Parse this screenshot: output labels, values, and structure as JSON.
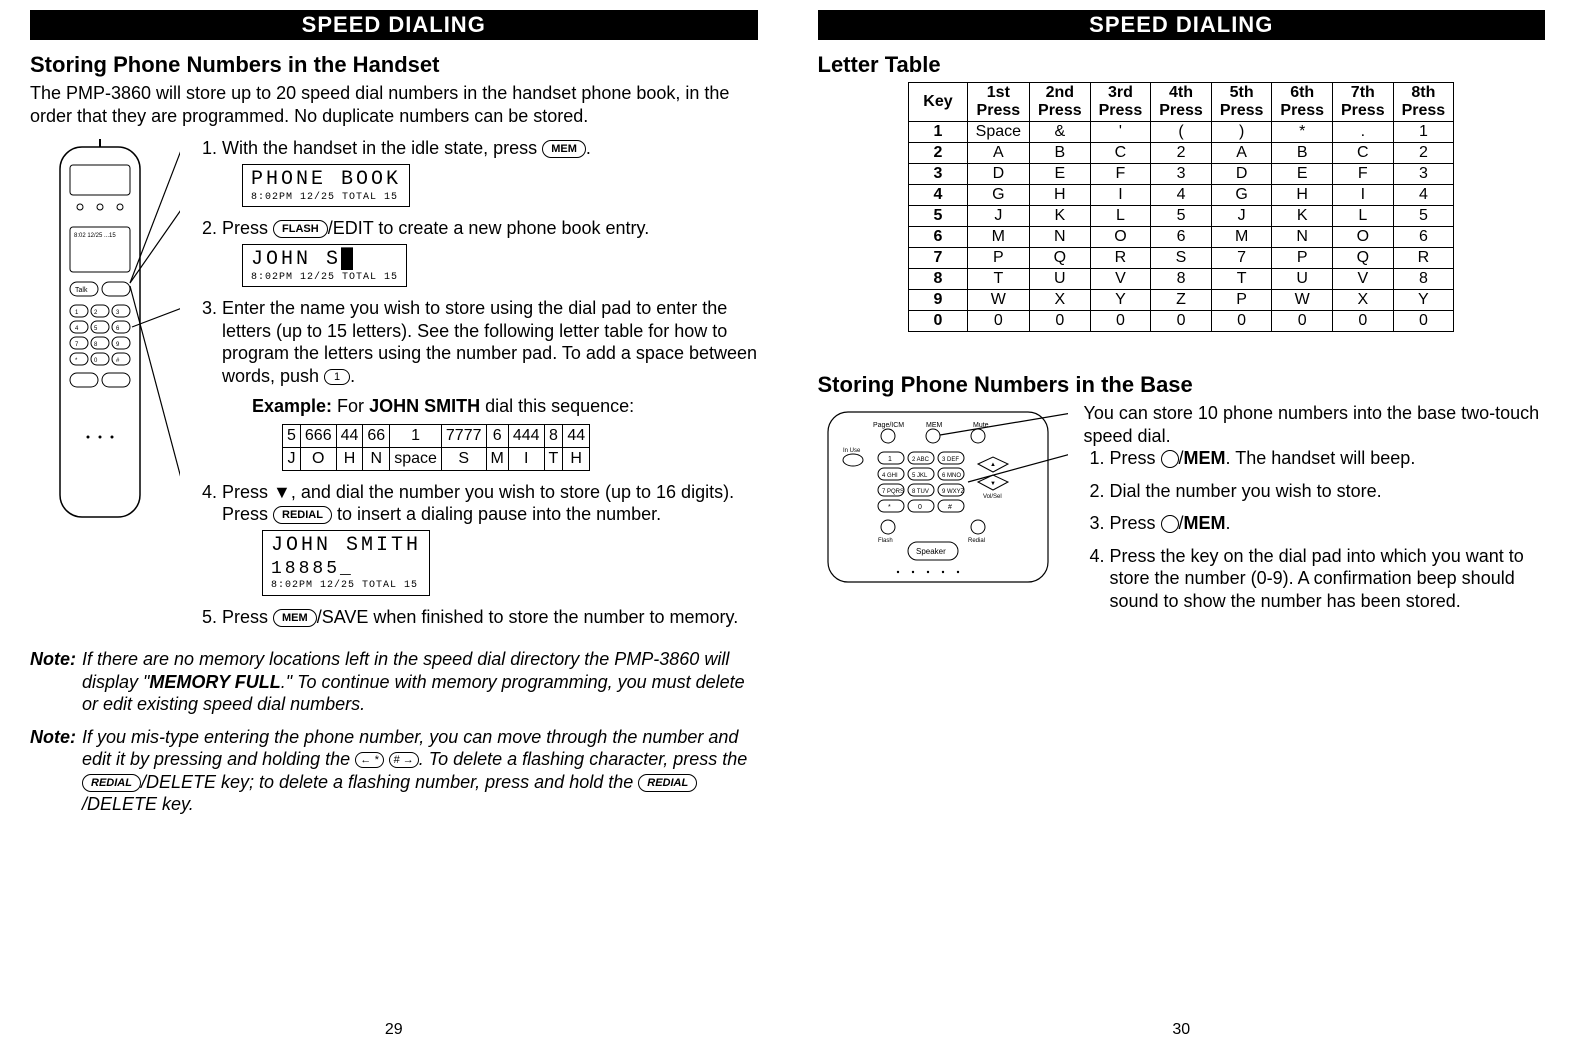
{
  "left": {
    "banner": "SPEED DIALING",
    "title": "Storing Phone Numbers in the Handset",
    "intro": "The PMP-3860 will store up to 20 speed dial numbers in the handset phone book, in the order that they are programmed.  No duplicate numbers can be stored.",
    "buttons": {
      "mem": "MEM",
      "flash": "FLASH",
      "redial": "REDIAL",
      "one": "1"
    },
    "steps": {
      "s1": "With the handset in the idle state, press ",
      "s1_end": ".",
      "lcd1_main": "PHONE BOOK",
      "lcd1_sub": "8:02PM 12/25     TOTAL 15",
      "s2": "Press ",
      "s2_end": "/EDIT to create a new phone book entry.",
      "lcd2_main": "JOHN S█",
      "lcd2_sub": "8:02PM 12/25     TOTAL 15",
      "s3": "Enter the name you wish to store using the dial pad to enter the letters (up to 15 letters).  See the following letter table  for how to program the letters using the number pad.  To add a space between words, push ",
      "s3_end": ".",
      "example_label": "Example:",
      "example_text": " For ",
      "example_name": "JOHN SMITH",
      "example_text2": " dial this sequence:",
      "s4": "Press ▼, and dial the number you wish to store (up to 16 digits).  Press ",
      "s4_end": " to insert a dialing pause into the number.",
      "lcd3_line1": "JOHN SMITH",
      "lcd3_line2": "18885_",
      "lcd3_sub": "8:02PM 12/25        TOTAL 15",
      "s5": "Press ",
      "s5_end": "/SAVE when finished to store the number to memory."
    },
    "example_table": {
      "row1": [
        "5",
        "666",
        "44",
        "66",
        "1",
        "7777",
        "6",
        "444",
        "8",
        "44"
      ],
      "row2": [
        "J",
        "O",
        "H",
        "N",
        "space",
        "S",
        "M",
        "I",
        "T",
        "H"
      ]
    },
    "note1_label": "Note:",
    "note1": "If there are no memory locations left in the speed dial directory the PMP-3860 will display \"",
    "note1_bold": "MEMORY FULL",
    "note1_end": ".\"  To continue with memory programming, you must delete or edit existing speed dial numbers.",
    "note2_label": "Note:",
    "note2": "If you mis-type entering the phone number, you can move through the number and edit it by pressing and holding the ",
    "note2_mid": ".  To delete a flashing character, press the ",
    "note2_mid2": "/DELETE key; to delete a flashing number, press and hold the ",
    "note2_end": "/DELETE key.",
    "star_btn": "← *",
    "hash_btn": "# →",
    "page_num": "29"
  },
  "right": {
    "banner": "SPEED DIALING",
    "title1": "Letter Table",
    "letter_table": {
      "header": [
        "Key",
        "1st Press",
        "2nd Press",
        "3rd Press",
        "4th Press",
        "5th Press",
        "6th Press",
        "7th Press",
        "8th Press"
      ],
      "rows": [
        [
          "1",
          "Space",
          "&",
          "'",
          "(",
          ")",
          "*",
          ".",
          "1"
        ],
        [
          "2",
          "A",
          "B",
          "C",
          "2",
          "A",
          "B",
          "C",
          "2"
        ],
        [
          "3",
          "D",
          "E",
          "F",
          "3",
          "D",
          "E",
          "F",
          "3"
        ],
        [
          "4",
          "G",
          "H",
          "I",
          "4",
          "G",
          "H",
          "I",
          "4"
        ],
        [
          "5",
          "J",
          "K",
          "L",
          "5",
          "J",
          "K",
          "L",
          "5"
        ],
        [
          "6",
          "M",
          "N",
          "O",
          "6",
          "M",
          "N",
          "O",
          "6"
        ],
        [
          "7",
          "P",
          "Q",
          "R",
          "S",
          "7",
          "P",
          "Q",
          "R"
        ],
        [
          "8",
          "T",
          "U",
          "V",
          "8",
          "T",
          "U",
          "V",
          "8"
        ],
        [
          "9",
          "W",
          "X",
          "Y",
          "Z",
          "P",
          "W",
          "X",
          "Y"
        ],
        [
          "0",
          "0",
          "0",
          "0",
          "0",
          "0",
          "0",
          "0",
          "0"
        ]
      ]
    },
    "title2": "Storing Phone Numbers in the Base",
    "base_intro": "You can store 10 phone numbers into the base two-touch speed dial.",
    "base_steps": {
      "s1": "Press ",
      "s1_end": "/",
      "s1_bold": "MEM",
      "s1_end2": ".  The handset will beep.",
      "s2": "Dial the number you wish to store.",
      "s3": "Press ",
      "s3_bold": "MEM",
      "s3_end": ".",
      "s4": "Press the key on the dial pad into which you want to store the number (0-9).  A confirmation beep should sound to show the number has been stored."
    },
    "page_num": "30"
  }
}
